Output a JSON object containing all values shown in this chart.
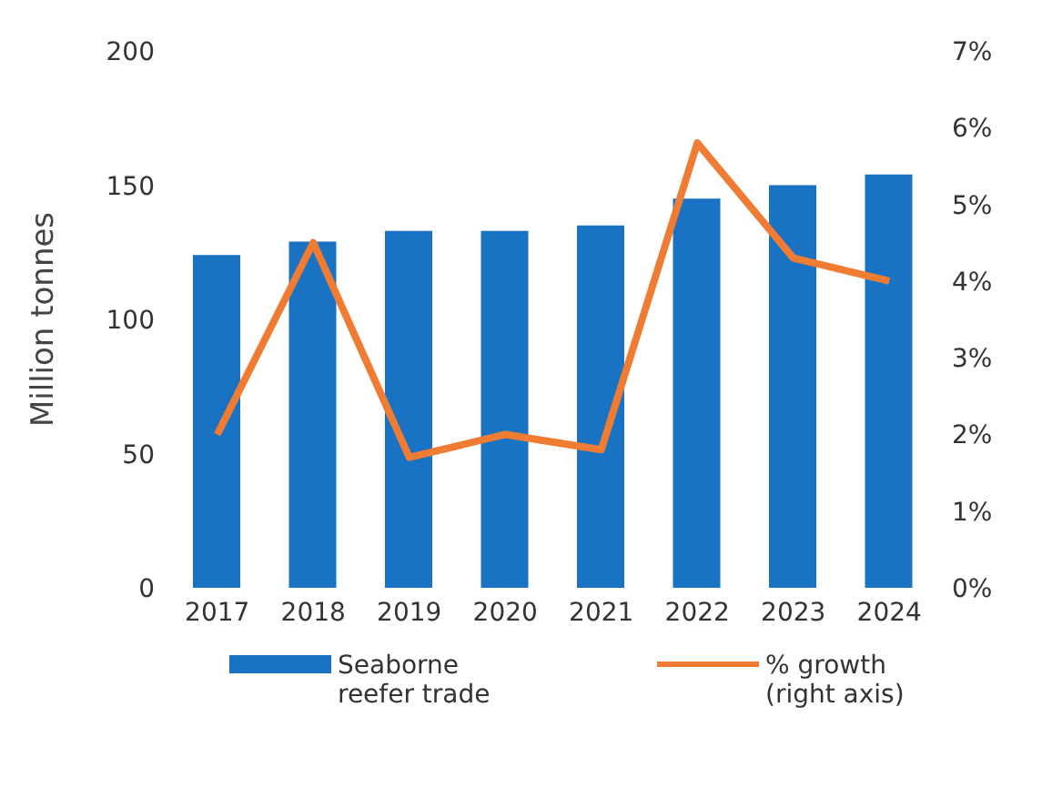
{
  "chart_data": {
    "type": "bar",
    "ylabel": "Million tonnes",
    "categories": [
      "2017",
      "2018",
      "2019",
      "2020",
      "2021",
      "2022",
      "2023",
      "2024"
    ],
    "series": [
      {
        "name": "Seaborne reefer trade",
        "color": "#1a73c2",
        "values": [
          124,
          129,
          133,
          133,
          135,
          145,
          150,
          154
        ]
      },
      {
        "name": "% growth (right axis)",
        "type": "line",
        "axis": "y2",
        "color": "#f07c34",
        "values": [
          2.0,
          4.5,
          1.7,
          2.0,
          1.8,
          5.8,
          4.3,
          4.0
        ]
      }
    ],
    "ylim": [
      0,
      200
    ],
    "yticks": [
      0,
      50,
      100,
      150,
      200
    ],
    "y2lim": [
      0,
      7
    ],
    "y2ticks": [
      {
        "value": 0,
        "label": "0%"
      },
      {
        "value": 1,
        "label": "1%"
      },
      {
        "value": 2,
        "label": "2%"
      },
      {
        "value": 3,
        "label": "3%"
      },
      {
        "value": 4,
        "label": "4%"
      },
      {
        "value": 5,
        "label": "5%"
      },
      {
        "value": 6,
        "label": "6%"
      },
      {
        "value": 7,
        "label": "7%"
      }
    ],
    "grid": false,
    "legend": "bottom",
    "marker": "none"
  }
}
